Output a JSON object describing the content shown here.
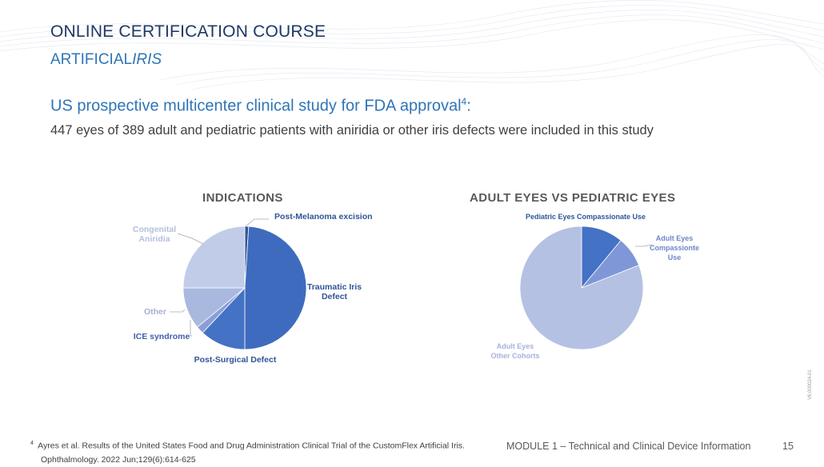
{
  "header": {
    "title": "ONLINE CERTIFICATION COURSE",
    "subtitle_plain": "ARTIFICIAL",
    "subtitle_italic": "IRIS"
  },
  "study": {
    "heading": "US prospective multicenter clinical study for FDA approval",
    "heading_ref": "4",
    "heading_suffix": ":",
    "description": "447 eyes of 389 adult and pediatric patients with aniridia or other iris defects were included in this study"
  },
  "chart_data": [
    {
      "type": "pie",
      "title": "INDICATIONS",
      "categories": [
        "Post-Melanoma excision",
        "Traumatic Iris Defect",
        "Post-Surgical Defect",
        "ICE syndrome",
        "Other",
        "Congenital Aniridia"
      ],
      "label_lines": [
        [
          "Post-Melanoma excision"
        ],
        [
          "Traumatic Iris",
          "Defect"
        ],
        [
          "Post-Surgical Defect"
        ],
        [
          "ICE syndrome"
        ],
        [
          "Other"
        ],
        [
          "Congenital",
          "Aniridia"
        ]
      ],
      "values": [
        1,
        49,
        12,
        2,
        11,
        25
      ],
      "colors": [
        "#2f5597",
        "#3f6bbf",
        "#4472c4",
        "#8a9fd6",
        "#a9b8df",
        "#c1cde8"
      ],
      "label_colors": [
        "#2f5597",
        "#2f5597",
        "#2f5597",
        "#3f5fae",
        "#a6b1d0",
        "#b4bfdc"
      ]
    },
    {
      "type": "pie",
      "title": "ADULT EYES VS PEDIATRIC EYES",
      "categories": [
        "Pediatric Eyes Compassionate Use",
        "Adult Eyes Compassionte Use",
        "Adult Eyes Other Cohorts"
      ],
      "label_lines": [
        [
          "Pediatric Eyes Compassionate Use"
        ],
        [
          "Adult Eyes",
          "Compassionte",
          "Use"
        ],
        [
          "Adult Eyes",
          "Other Cohorts"
        ]
      ],
      "values": [
        11,
        8,
        81
      ],
      "colors": [
        "#4472c4",
        "#7f97d6",
        "#b4c1e3"
      ],
      "label_colors": [
        "#2f5597",
        "#6f86c8",
        "#a6b3d8"
      ]
    }
  ],
  "footnote": {
    "ref": "4",
    "line1": "Ayres et al. Results of the United States Food and Drug Administration Clinical Trial of the CustomFlex Artificial Iris.",
    "line2": "Ophthalmology. 2022 Jun;129(6):614-625"
  },
  "footer": {
    "module": "MODULE 1 – Technical and Clinical Device Information",
    "page": "15",
    "version": "V6.000024-01"
  }
}
